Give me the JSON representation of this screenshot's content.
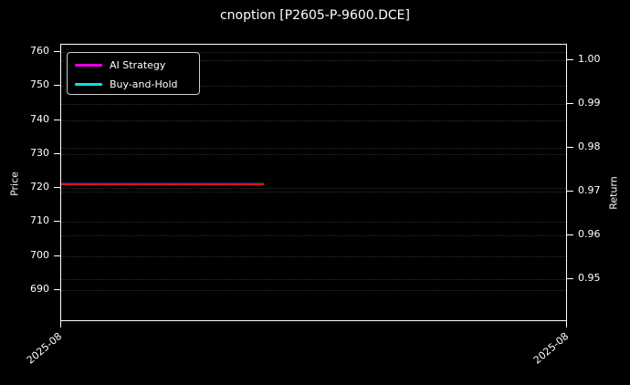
{
  "window": {
    "title": "cnoption [P2605-P-9600.DCE]"
  },
  "chart_data": {
    "type": "line",
    "title": "cnoption [P2605-P-9600.DCE]",
    "background_color": "#000000",
    "text_color": "#ffffff",
    "grid": true,
    "grid_style": "dotted",
    "left_axis": {
      "label": "Price",
      "ticks": [
        760,
        750,
        740,
        730,
        720,
        710,
        700,
        690
      ],
      "range": [
        682,
        762
      ]
    },
    "right_axis": {
      "label": "Return",
      "ticks": [
        1.0,
        0.99,
        0.98,
        0.97,
        0.96,
        0.95
      ],
      "tick_decimals": 2,
      "range": [
        0.943,
        1.004
      ]
    },
    "x_axis": {
      "tick_labels": [
        "2025-08",
        "2025-08"
      ],
      "tick_positions_fraction": [
        0,
        1
      ]
    },
    "legend": {
      "position": "upper-left",
      "items": [
        {
          "label": "AI Strategy",
          "color": "#e400e4"
        },
        {
          "label": "Buy-and-Hold",
          "color": "#00e5e5"
        }
      ]
    },
    "series": [
      {
        "name": "close-price-line",
        "axis": "left",
        "color": "#e01212",
        "shape": "flat-horizontal",
        "value": 721,
        "x_extent_fraction": [
          0.0,
          0.4
        ],
        "thickness": 2
      },
      {
        "name": "overlay-dark-line",
        "axis": "left",
        "color": "#1b1b52",
        "shape": "flat-horizontal",
        "value": 721.6,
        "x_extent_fraction": [
          0.0,
          0.4
        ],
        "thickness": 1
      }
    ]
  }
}
